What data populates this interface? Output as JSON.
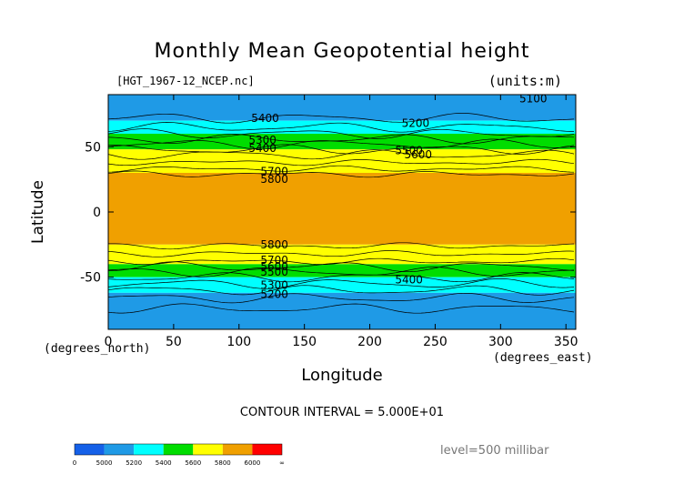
{
  "chart_data": {
    "type": "heatmap",
    "title": "Monthly Mean Geopotential height",
    "file_label": "[HGT_1967-12_NCEP.nc]",
    "units_label": "(units:m)",
    "xlabel": "Longitude",
    "ylabel": "Latitude",
    "x_unit_label": "(degrees_east)",
    "y_unit_label": "(degrees_north)",
    "xlim": [
      0,
      357.5
    ],
    "ylim": [
      -90,
      90
    ],
    "x_ticks": [
      0,
      50,
      100,
      150,
      200,
      250,
      300,
      350
    ],
    "y_ticks": [
      -50,
      0,
      50
    ],
    "contour_interval_text": "CONTOUR INTERVAL = 5.000E+01",
    "level_text": "level=500 millibar",
    "contour_labels": [
      {
        "text": "5100",
        "lon": 325,
        "lat": 87
      },
      {
        "text": "5400",
        "lon": 120,
        "lat": 72
      },
      {
        "text": "5200",
        "lon": 235,
        "lat": 68
      },
      {
        "text": "5300",
        "lon": 118,
        "lat": 55
      },
      {
        "text": "5400",
        "lon": 118,
        "lat": 49
      },
      {
        "text": "5500",
        "lon": 230,
        "lat": 47
      },
      {
        "text": "5600",
        "lon": 237,
        "lat": 44
      },
      {
        "text": "5700",
        "lon": 127,
        "lat": 31
      },
      {
        "text": "5800",
        "lon": 127,
        "lat": 25
      },
      {
        "text": "5800",
        "lon": 127,
        "lat": -25
      },
      {
        "text": "5700",
        "lon": 127,
        "lat": -37
      },
      {
        "text": "5600",
        "lon": 127,
        "lat": -42
      },
      {
        "text": "5500",
        "lon": 127,
        "lat": -46
      },
      {
        "text": "5400",
        "lon": 230,
        "lat": -52
      },
      {
        "text": "5300",
        "lon": 127,
        "lat": -56
      },
      {
        "text": "5200",
        "lon": 127,
        "lat": -63
      }
    ],
    "colorbar": {
      "labels": [
        "0",
        "5000",
        "5200",
        "5400",
        "5600",
        "5800",
        "6000",
        "∞"
      ],
      "colors": [
        "#1560e8",
        "#1f9ae6",
        "#00ffff",
        "#00dd00",
        "#ffff00",
        "#f0a000",
        "#ff0000"
      ]
    },
    "bands": [
      {
        "lat_from": 90,
        "lat_to": 70,
        "color": "#1f9ae6"
      },
      {
        "lat_from": 70,
        "lat_to": 60,
        "color": "#00ffff"
      },
      {
        "lat_from": 60,
        "lat_to": 48,
        "color": "#00dd00"
      },
      {
        "lat_from": 48,
        "lat_to": 30,
        "color": "#ffff00"
      },
      {
        "lat_from": 30,
        "lat_to": -25,
        "color": "#f0a000"
      },
      {
        "lat_from": -25,
        "lat_to": -40,
        "color": "#ffff00"
      },
      {
        "lat_from": -40,
        "lat_to": -50,
        "color": "#00dd00"
      },
      {
        "lat_from": -50,
        "lat_to": -62,
        "color": "#00ffff"
      },
      {
        "lat_from": -62,
        "lat_to": -90,
        "color": "#1f9ae6"
      }
    ]
  }
}
